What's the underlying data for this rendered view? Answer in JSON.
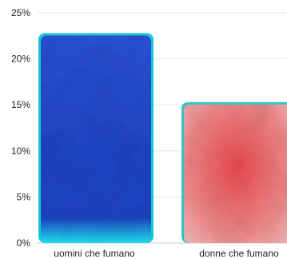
{
  "chart_data": {
    "type": "bar",
    "title": "",
    "xlabel": "",
    "ylabel": "",
    "categories": [
      "uomini che fumano",
      "donne che fumano"
    ],
    "values": [
      22.8,
      15.3
    ],
    "ylim": [
      0,
      25
    ],
    "y_ticks": [
      0,
      5,
      10,
      15,
      20,
      25
    ],
    "y_tick_labels": [
      "0%",
      "5%",
      "10%",
      "15%",
      "20%",
      "25%"
    ],
    "grid": true,
    "legend": "none",
    "colors": {
      "bar_1_top": "#2a52d6",
      "bar_1_mid": "#1f44c4",
      "bar_1_bottom": "#1ee3f0",
      "bar_1_edge": "#17c9d6",
      "bar_2_top": "#ef8a8a",
      "bar_2_mid": "#e94a4f",
      "bar_2_bottom": "#f3b4b4",
      "bar_2_edge": "#2ec4c9",
      "grid": "#e6e6e6",
      "axis": "#cccccc",
      "text": "#222222"
    }
  }
}
